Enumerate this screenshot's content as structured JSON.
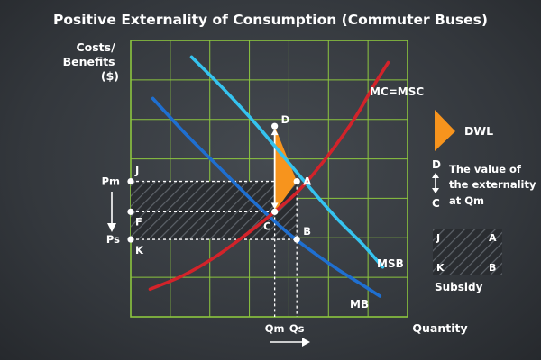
{
  "chart_data": {
    "type": "line",
    "title": "Positive Externality of Consumption (Commuter Buses)",
    "ylabel": [
      "Costs/",
      "Benefits",
      "($)"
    ],
    "xlabel": "Quantity",
    "xlim": [
      0,
      10
    ],
    "ylim": [
      0,
      10
    ],
    "grid": true,
    "series": [
      {
        "name": "MSB",
        "color": "#35c3ef",
        "x": [
          2.2,
          3.3,
          4.5,
          5.6,
          6.7,
          7.5,
          8.4,
          9.1
        ],
        "y": [
          9.4,
          8.3,
          7.0,
          5.7,
          4.4,
          3.5,
          2.6,
          1.8
        ]
      },
      {
        "name": "MB",
        "color": "#1f6fd0",
        "x": [
          0.8,
          2.0,
          3.3,
          4.5,
          5.6,
          6.5,
          7.5,
          8.3,
          9.0
        ],
        "y": [
          7.9,
          6.6,
          5.3,
          4.1,
          3.1,
          2.4,
          1.7,
          1.2,
          0.75
        ]
      },
      {
        "name": "MC=MSC",
        "color": "#d2232a",
        "x": [
          0.7,
          1.9,
          3.1,
          4.2,
          5.2,
          6.1,
          7.1,
          8.1,
          8.8,
          9.3
        ],
        "y": [
          1.0,
          1.5,
          2.2,
          3.0,
          3.8,
          4.6,
          5.8,
          7.2,
          8.4,
          9.2
        ]
      }
    ],
    "points": [
      {
        "label": "D",
        "x": 5.2,
        "y": 6.9
      },
      {
        "label": "A",
        "x": 6.0,
        "y": 4.9
      },
      {
        "label": "C",
        "x": 5.2,
        "y": 3.8
      },
      {
        "label": "B",
        "x": 6.0,
        "y": 2.8
      },
      {
        "label": "J",
        "x": 0.0,
        "y": 4.9
      },
      {
        "label": "F",
        "x": 0.0,
        "y": 3.8
      },
      {
        "label": "K",
        "x": 0.0,
        "y": 2.8
      }
    ],
    "price_labels": [
      {
        "label": "Pm",
        "y": 4.9
      },
      {
        "label": "Ps",
        "y": 2.8
      }
    ],
    "quantity_labels": [
      {
        "label": "Qm",
        "x": 5.2
      },
      {
        "label": "Qs",
        "x": 6.0
      }
    ],
    "dwl_triangle": [
      "D",
      "A",
      "C"
    ],
    "subsidy_rect": [
      "J",
      "A",
      "B",
      "K"
    ]
  },
  "legend": {
    "dwl": {
      "label": "DWL",
      "color": "#f7941d"
    },
    "externality": {
      "top": "D",
      "bottom": "C",
      "lines": [
        "The value of",
        "the externality",
        "at Qm"
      ]
    },
    "subsidy": {
      "corners": [
        "J",
        "A",
        "K",
        "B"
      ],
      "label": "Subsidy"
    }
  },
  "colors": {
    "grid": "#8cc63f",
    "guide": "#ffffff",
    "text": "#ffffff"
  }
}
